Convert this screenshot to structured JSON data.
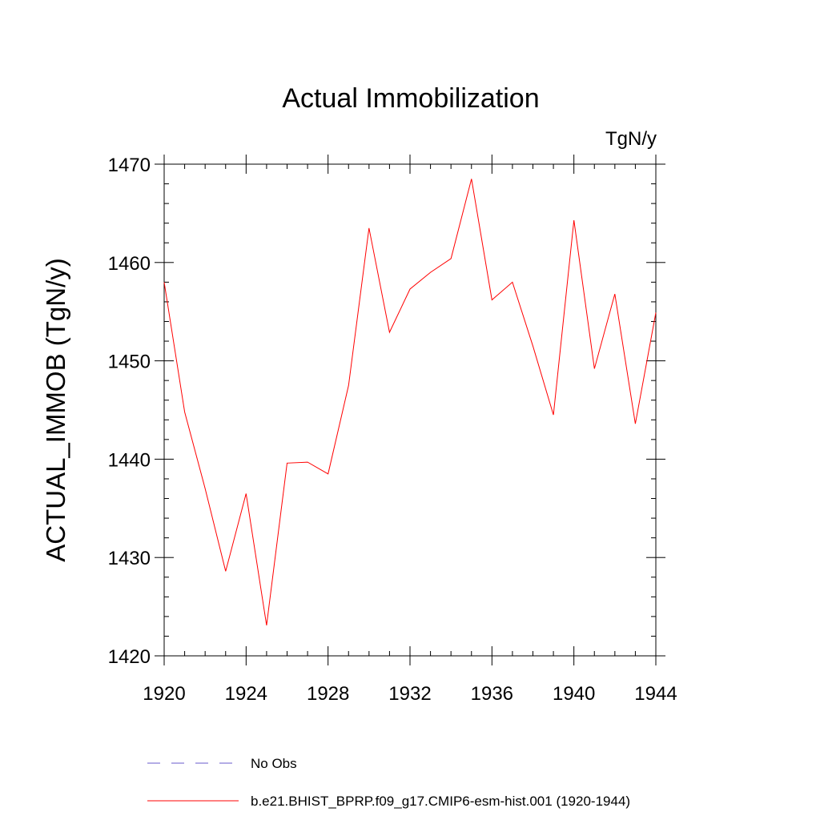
{
  "chart_data": {
    "type": "line",
    "title": "Actual Immobilization",
    "units_label": "TgN/y",
    "ylabel": "ACTUAL_IMMOB  (TgN/y)",
    "xlabel": "",
    "xlim": [
      1920,
      1944
    ],
    "ylim": [
      1420,
      1470
    ],
    "xticks": [
      1920,
      1924,
      1928,
      1932,
      1936,
      1940,
      1944
    ],
    "yticks": [
      1420,
      1430,
      1440,
      1450,
      1460,
      1470
    ],
    "grid": false,
    "legend_placement": "bottom",
    "series": [
      {
        "name": "b.e21.BHIST_BPRP.f09_g17.CMIP6-esm-hist.001 (1920-1944)",
        "color": "#ff0000",
        "style": "solid",
        "x": [
          1920,
          1921,
          1922,
          1923,
          1924,
          1925,
          1926,
          1927,
          1928,
          1929,
          1930,
          1931,
          1932,
          1933,
          1934,
          1935,
          1936,
          1937,
          1938,
          1939,
          1940,
          1941,
          1942,
          1943,
          1944
        ],
        "y": [
          1458.0,
          1444.8,
          1437.0,
          1428.6,
          1436.5,
          1423.1,
          1439.6,
          1439.7,
          1438.5,
          1447.5,
          1463.5,
          1452.9,
          1457.3,
          1459.0,
          1460.4,
          1468.5,
          1456.2,
          1458.0,
          1451.5,
          1444.5,
          1464.3,
          1449.2,
          1456.8,
          1443.6,
          1454.9
        ]
      }
    ],
    "legend": [
      {
        "label": "No Obs",
        "color": "#6a5acd",
        "style": "dashed"
      },
      {
        "label": "b.e21.BHIST_BPRP.f09_g17.CMIP6-esm-hist.001 (1920-1944)",
        "color": "#ff0000",
        "style": "solid"
      }
    ]
  }
}
